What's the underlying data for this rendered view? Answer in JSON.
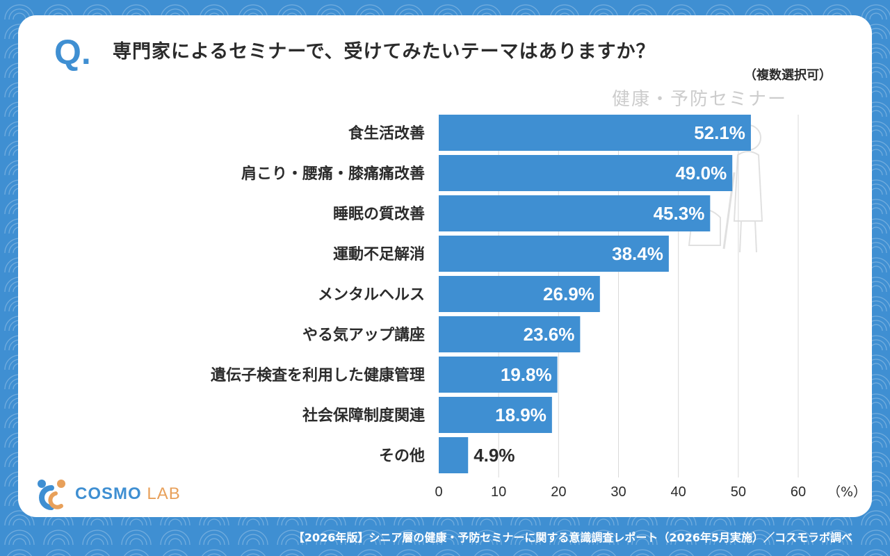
{
  "question": {
    "mark": "Q",
    "mark_dot": ".",
    "text": "専門家によるセミナーで、受けてみたいテーマはありますか？",
    "note": "（複数選択可）"
  },
  "watermark_text": "健康・予防セミナー",
  "logo": {
    "main": "COSMO",
    "sub": "LAB"
  },
  "footer": "【2026年版】シニア層の健康・予防セミナーに関する意識調査レポート（2026年5月実施）／コスモラボ調べ",
  "colors": {
    "bar": "#3f8fd2",
    "grid": "#d9d9d9",
    "label": "#2b2b2b",
    "value_inside": "#ffffff"
  },
  "chart_data": {
    "type": "bar",
    "orientation": "horizontal",
    "categories": [
      "食生活改善",
      "肩こり・腰痛・膝痛痛改善",
      "睡眠の質改善",
      "運動不足解消",
      "メンタルヘルス",
      "やる気アップ講座",
      "遺伝子検査を利用した健康管理",
      "社会保障制度関連",
      "その他"
    ],
    "values": [
      52.1,
      49.0,
      45.3,
      38.4,
      26.9,
      23.6,
      19.8,
      18.9,
      4.9
    ],
    "value_labels": [
      "52.1%",
      "49.0%",
      "45.3%",
      "38.4%",
      "26.9%",
      "23.6%",
      "19.8%",
      "18.9%",
      "4.9%"
    ],
    "xlim": [
      0,
      60
    ],
    "xticks": [
      "0",
      "10",
      "20",
      "30",
      "40",
      "50",
      "60"
    ],
    "unit_label": "（%）",
    "grid": true
  }
}
